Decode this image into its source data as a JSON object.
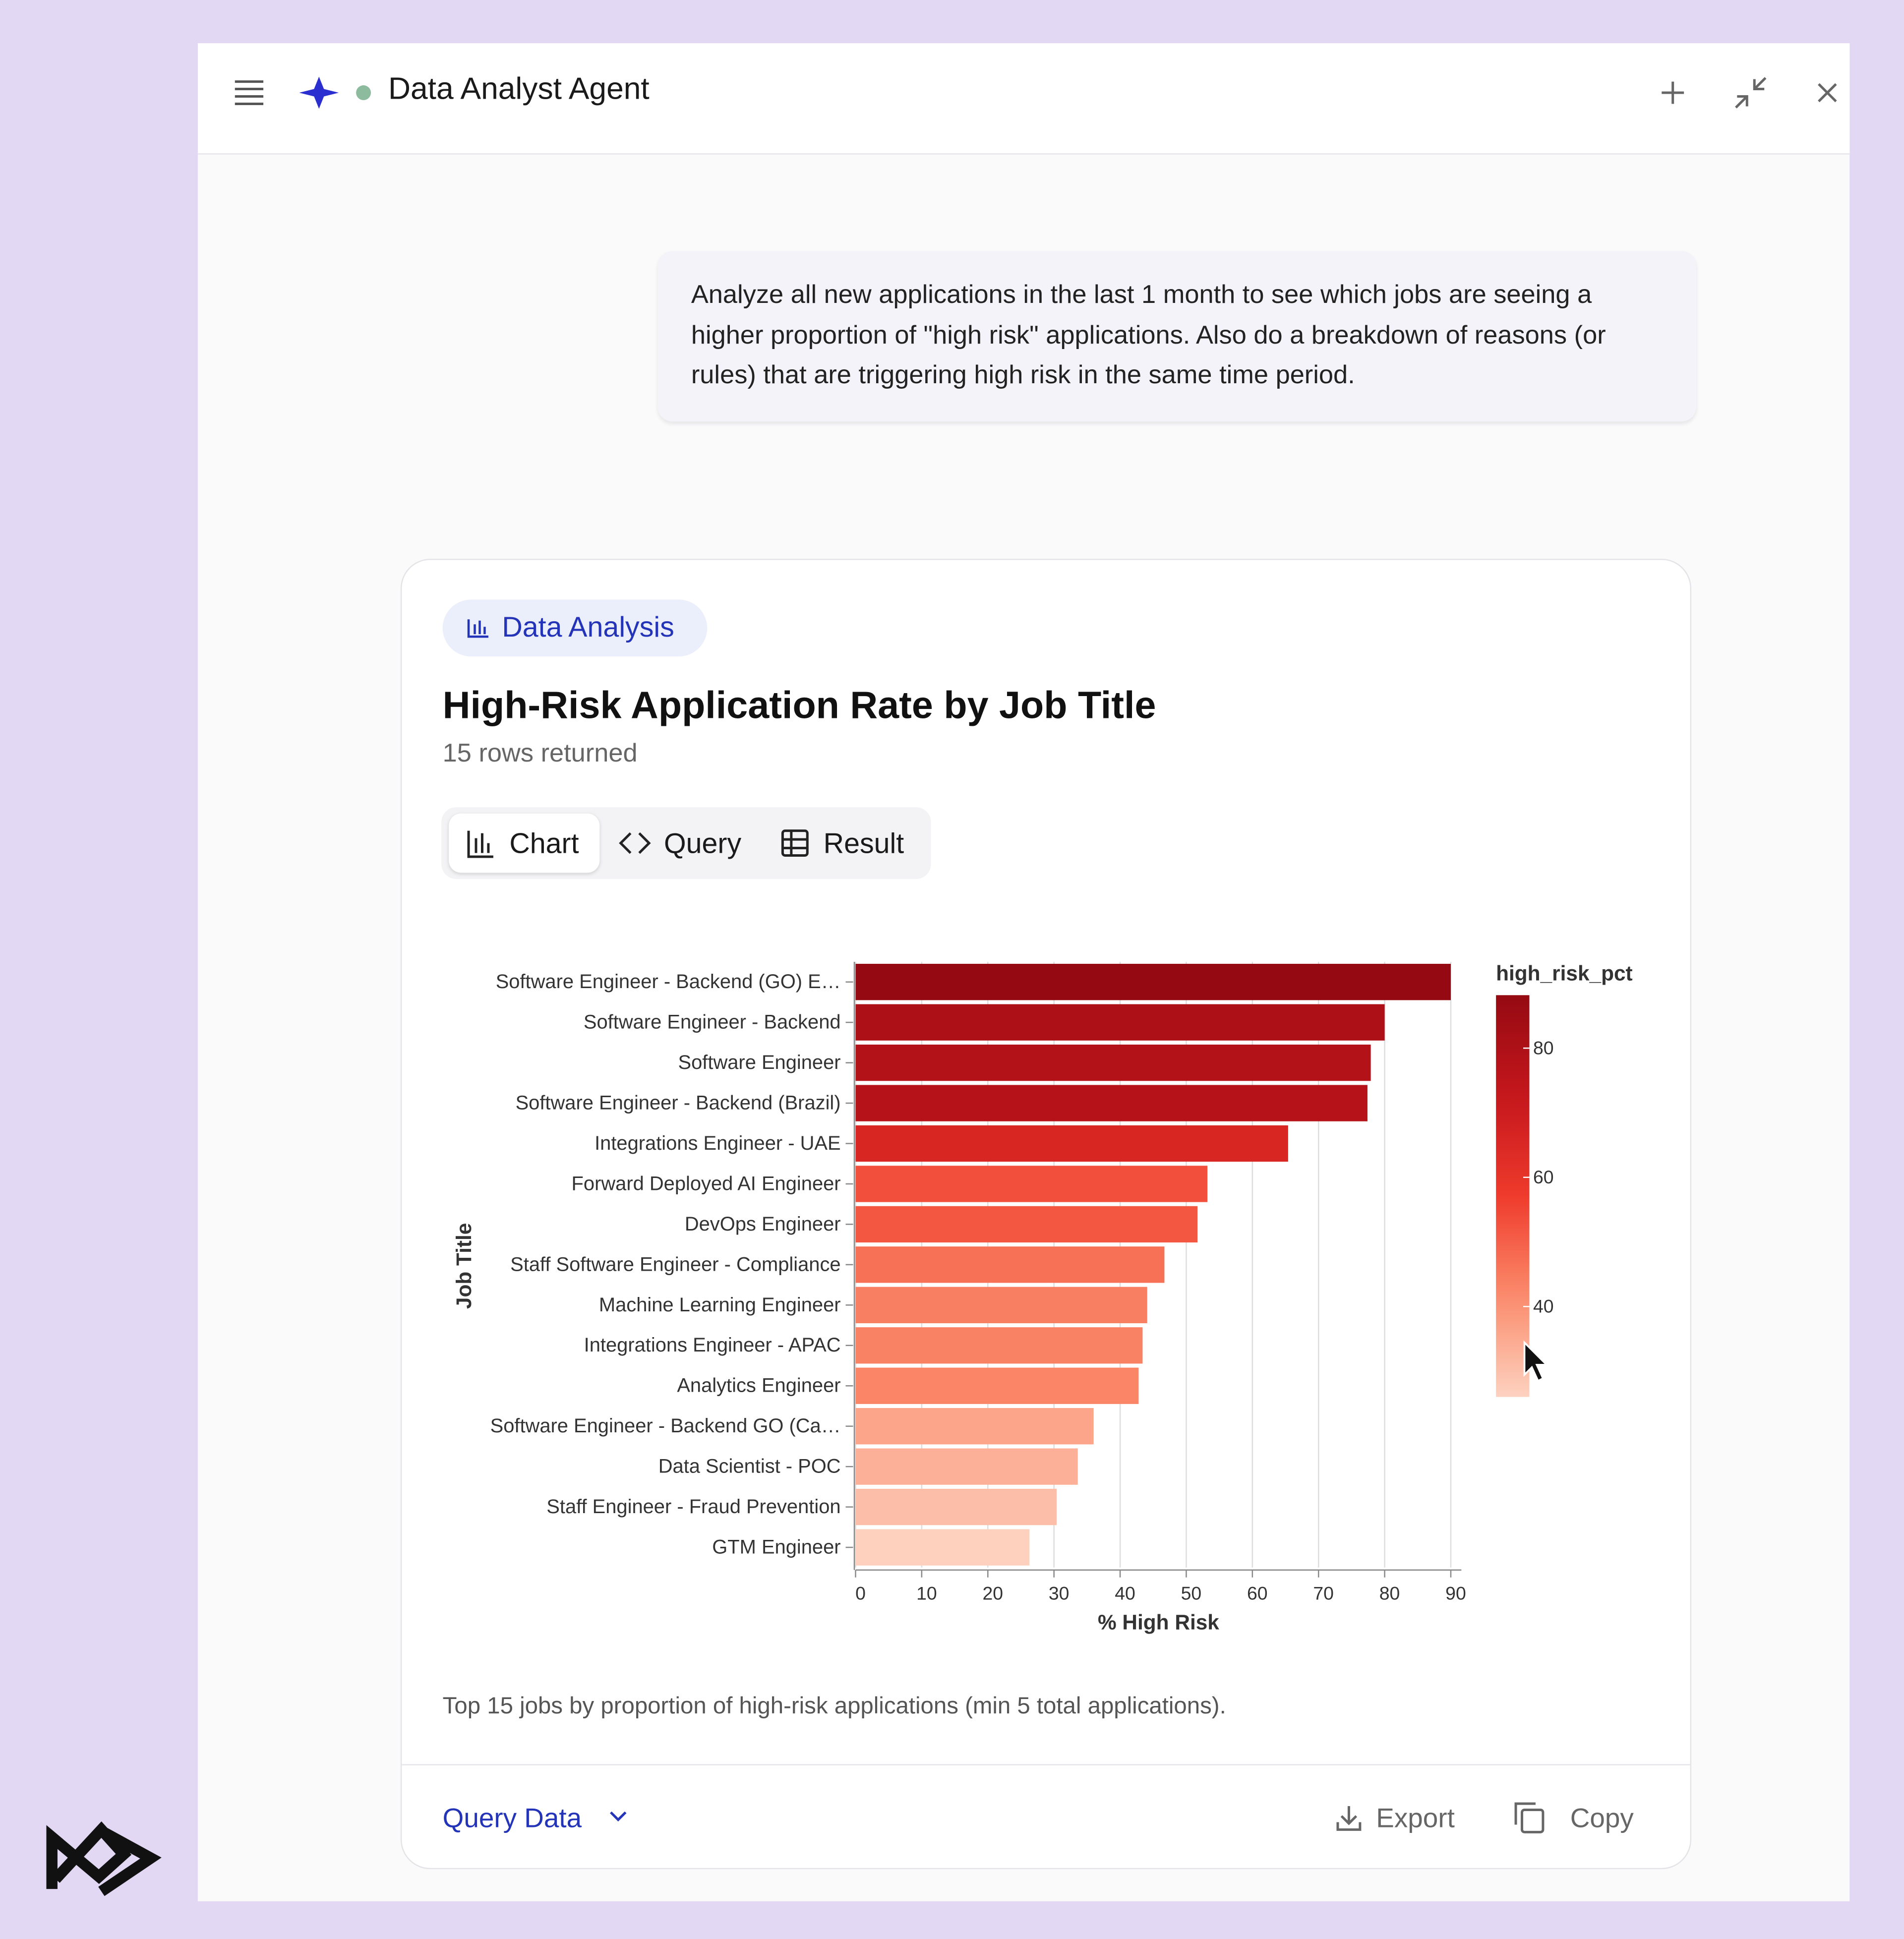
{
  "header": {
    "title": "Data Analyst Agent"
  },
  "prompt": "Analyze all new applications in the last 1 month to see which jobs are seeing a higher proportion of \"high risk\" applications. Also do a breakdown of reasons (or rules) that are triggering high risk in the same time period.",
  "card": {
    "badge": "Data Analysis",
    "title": "High-Risk Application Rate by Job Title",
    "subtitle": "15 rows returned",
    "tabs": [
      "Chart",
      "Query",
      "Result"
    ],
    "caption": "Top 15 jobs by proportion of high-risk applications (min 5 total applications).",
    "footer": {
      "query": "Query Data",
      "export": "Export",
      "copy": "Copy"
    }
  },
  "chart_data": {
    "type": "bar",
    "orientation": "horizontal",
    "categories": [
      "Software Engineer - Backend (GO) E…",
      "Software Engineer - Backend",
      "Software Engineer",
      "Software Engineer - Backend (Brazil)",
      "Integrations Engineer - UAE",
      "Forward Deployed AI Engineer",
      "DevOps Engineer",
      "Staff Software Engineer - Compliance",
      "Machine Learning Engineer",
      "Integrations Engineer - APAC",
      "Analytics Engineer",
      "Software Engineer - Backend GO (Ca…",
      "Data Scientist - POC",
      "Staff Engineer - Fraud Prevention",
      "GTM Engineer"
    ],
    "values": [
      90,
      80,
      77.9,
      77.4,
      65.4,
      53.2,
      51.7,
      46.7,
      44.1,
      43.4,
      42.8,
      36,
      33.6,
      30.4,
      26.3
    ],
    "xlabel": "% High Risk",
    "ylabel": "Job Title",
    "xlim": [
      0,
      91.6
    ],
    "xticks": [
      0,
      10,
      20,
      30,
      40,
      50,
      60,
      70,
      80,
      90
    ],
    "grid": true,
    "legend": {
      "title": "high_risk_pct",
      "lim": [
        26,
        88.2
      ],
      "ticks": [
        40,
        60,
        80
      ]
    },
    "color_scheme": [
      "#fdd2c0",
      "#fb8c6c",
      "#ef3b2c",
      "#c4161c",
      "#950a12"
    ]
  }
}
